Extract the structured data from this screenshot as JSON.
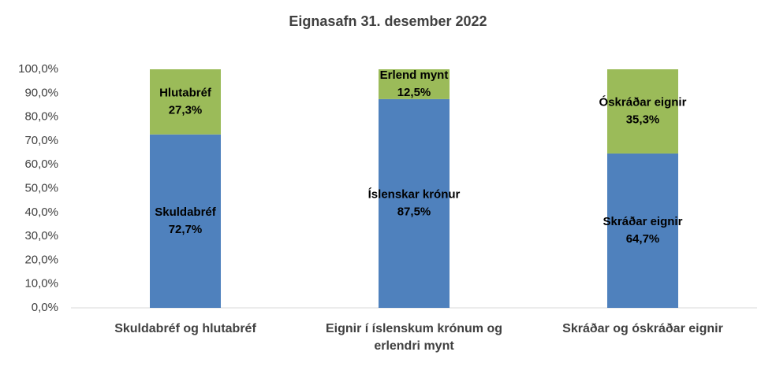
{
  "chart_data": {
    "type": "stacked_bar",
    "title": "Eignasafn 31. desember 2022",
    "categories": [
      "Skuldabréf og hlutabréf",
      "Eignir í íslenskum krónum og erlendri mynt",
      "Skráðar og óskráðar eignir"
    ],
    "series": [
      {
        "color": "#4f81bd",
        "values": [
          72.7,
          87.5,
          64.7
        ],
        "value_labels": [
          "72,7%",
          "87,5%",
          "64,7%"
        ],
        "segment_labels": [
          "Skuldabréf",
          "Íslenskar krónur",
          "Skráðar eignir"
        ]
      },
      {
        "color": "#9bbb59",
        "values": [
          27.3,
          12.5,
          35.3
        ],
        "value_labels": [
          "27,3%",
          "12,5%",
          "35,3%"
        ],
        "segment_labels": [
          "Hlutabréf",
          "Erlend mynt",
          "Óskráðar eignir"
        ]
      }
    ],
    "ylim": [
      0,
      100
    ],
    "yticks": [
      {
        "value": 0,
        "label": "0,0%"
      },
      {
        "value": 10,
        "label": "10,0%"
      },
      {
        "value": 20,
        "label": "20,0%"
      },
      {
        "value": 30,
        "label": "30,0%"
      },
      {
        "value": 40,
        "label": "40,0%"
      },
      {
        "value": 50,
        "label": "50,0%"
      },
      {
        "value": 60,
        "label": "60,0%"
      },
      {
        "value": 70,
        "label": "70,0%"
      },
      {
        "value": 80,
        "label": "80,0%"
      },
      {
        "value": 90,
        "label": "90,0%"
      },
      {
        "value": 100,
        "label": "100,0%"
      }
    ],
    "grid": false
  }
}
